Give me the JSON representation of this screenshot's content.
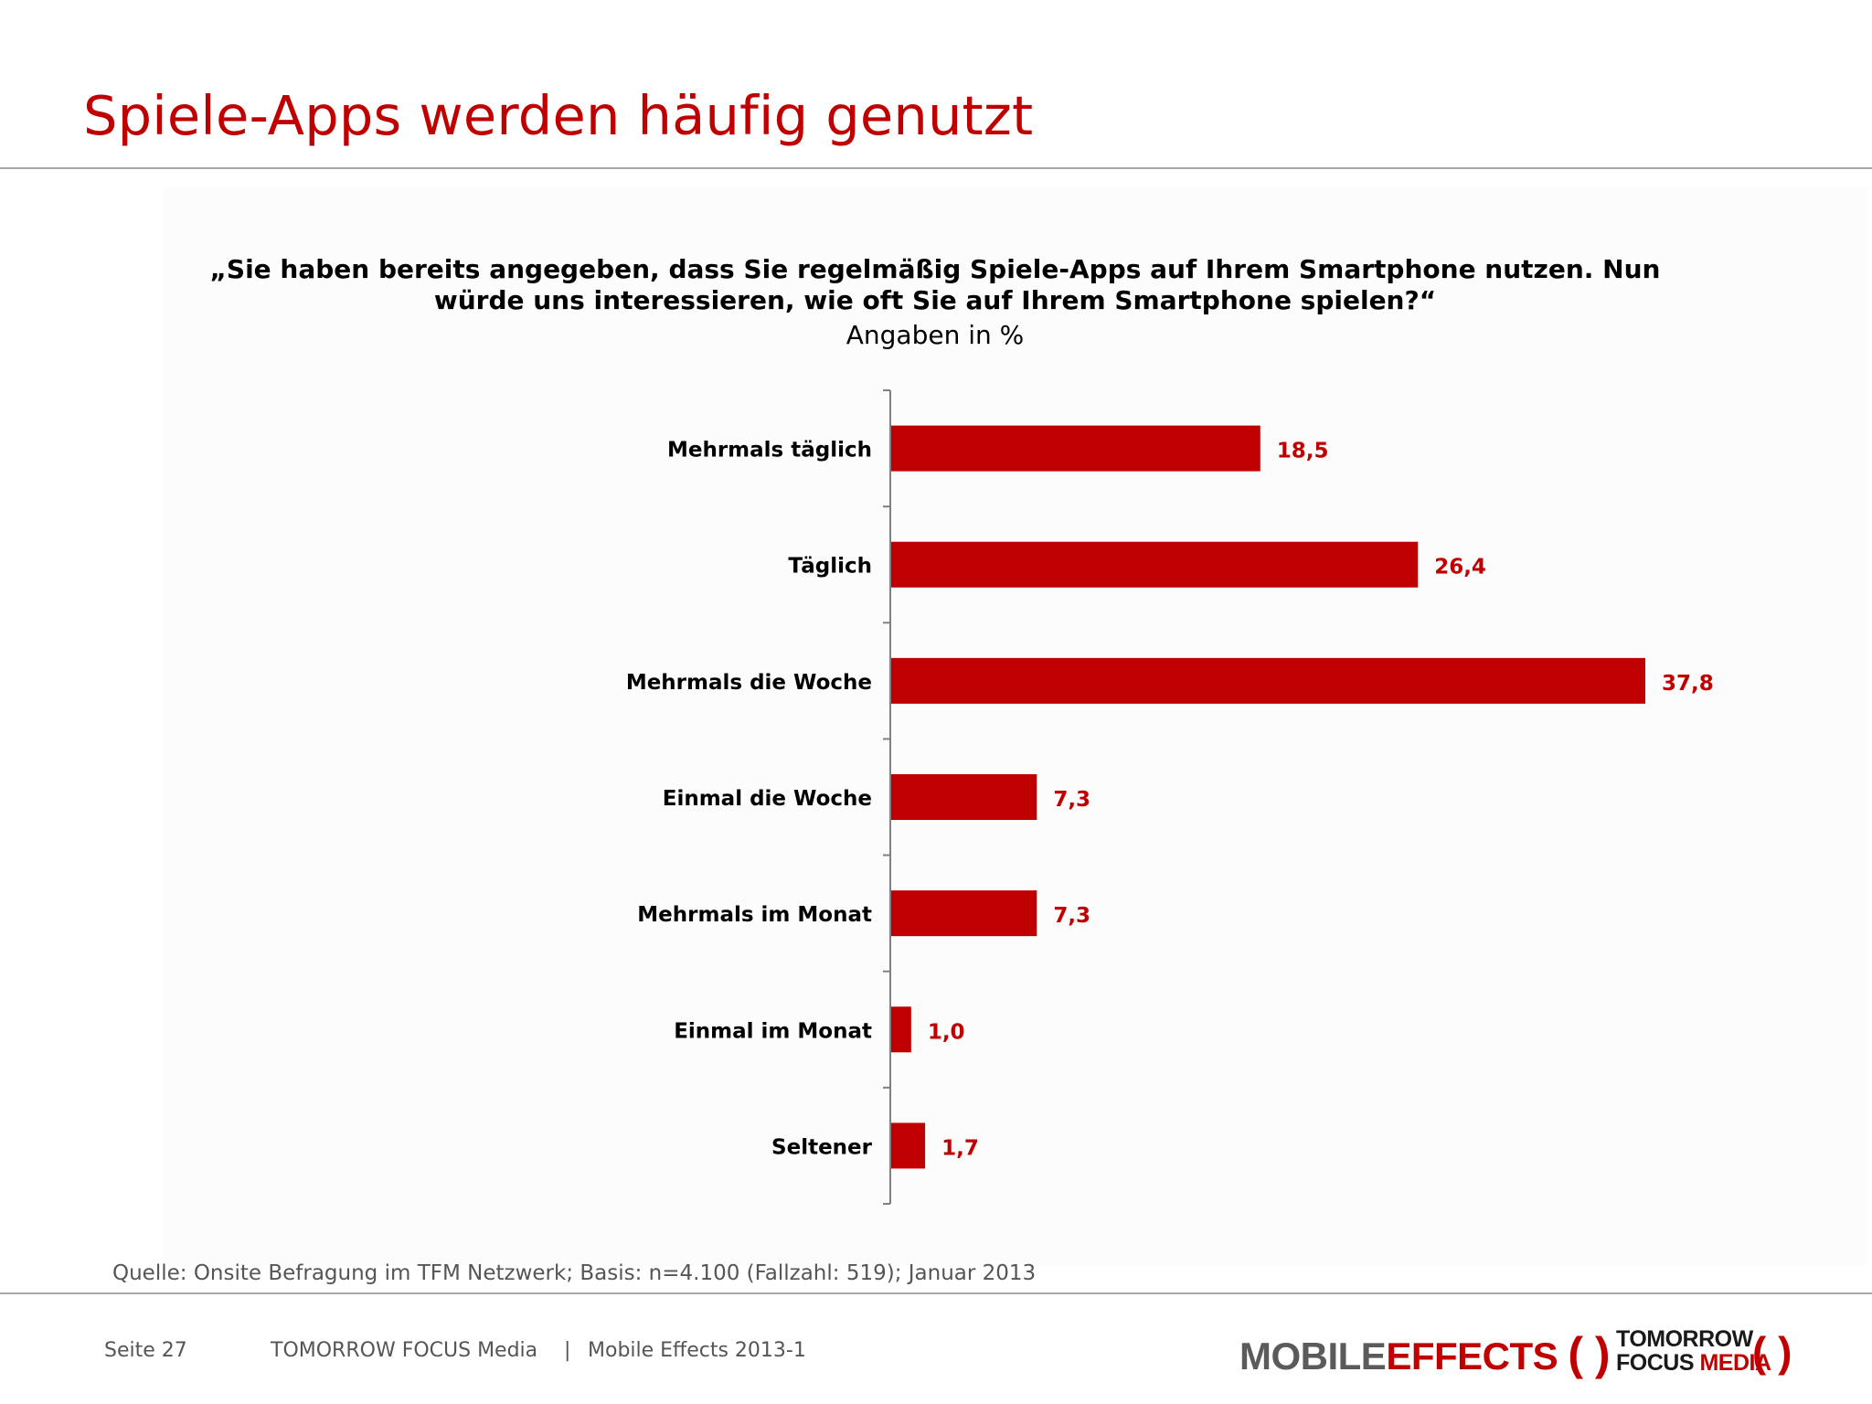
{
  "slide": {
    "title": "Spiele-Apps werden häufig genutzt",
    "question_line1": "„Sie haben bereits angegeben, dass Sie regelmäßig Spiele-Apps auf Ihrem Smartphone nutzen. Nun",
    "question_line2": "würde uns interessieren, wie oft Sie auf Ihrem Smartphone spielen?“",
    "unit": "Angaben in %",
    "source": "Quelle: Onsite Befragung im TFM Netzwerk; Basis: n=4.100 (Fallzahl: 519); Januar 2013"
  },
  "footer": {
    "page": "Seite 27",
    "company": "TOMORROW FOCUS Media",
    "separator": "|",
    "report": "Mobile Effects 2013-1"
  },
  "logos": {
    "mobile": "MOBILE",
    "effects": "EFFECTS",
    "bracket_open": "(",
    "bracket_close": ")",
    "tfm_line1": "TOMORROW",
    "tfm_line2_a": "FOCUS",
    "tfm_line2_b": "MEDIA"
  },
  "colors": {
    "accent": "#c00000",
    "text": "#000000",
    "footer_text": "#555555"
  },
  "chart_data": {
    "type": "bar",
    "orientation": "horizontal",
    "categories": [
      "Mehrmals täglich",
      "Täglich",
      "Mehrmals die Woche",
      "Einmal die Woche",
      "Mehrmals im Monat",
      "Einmal im Monat",
      "Seltener"
    ],
    "values": [
      18.5,
      26.4,
      37.8,
      7.3,
      7.3,
      1.0,
      1.7
    ],
    "data_labels": [
      "18,5",
      "26,4",
      "37,8",
      "7,3",
      "7,3",
      "1,0",
      "1,7"
    ],
    "title": "",
    "xlabel": "",
    "ylabel": "",
    "xlim": [
      0,
      40
    ],
    "grid": false,
    "legend": "none"
  }
}
